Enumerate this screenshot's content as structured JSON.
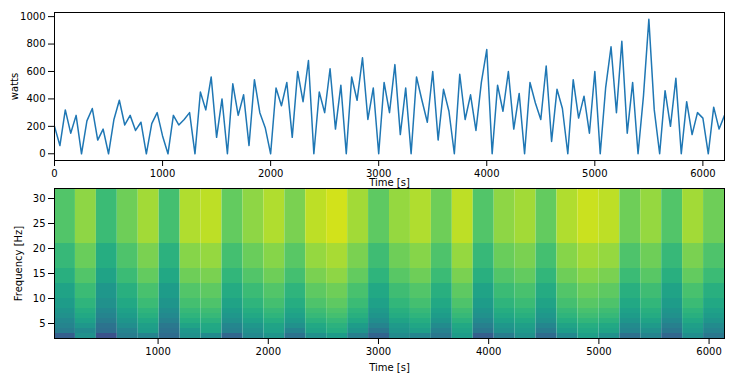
{
  "chart_data": [
    {
      "type": "line",
      "xlabel": "Time [s]",
      "ylabel": "watts",
      "color": "#1f77b4",
      "xlim": [
        0,
        6200
      ],
      "ylim": [
        -49,
        1030
      ],
      "xticks": [
        0,
        1000,
        2000,
        3000,
        4000,
        5000,
        6000
      ],
      "yticks": [
        0,
        200,
        400,
        600,
        800,
        1000
      ],
      "x": [
        0,
        50,
        100,
        150,
        200,
        250,
        300,
        350,
        400,
        450,
        500,
        550,
        600,
        650,
        700,
        750,
        800,
        850,
        900,
        950,
        1000,
        1050,
        1100,
        1150,
        1200,
        1250,
        1300,
        1350,
        1400,
        1450,
        1500,
        1550,
        1600,
        1650,
        1700,
        1750,
        1800,
        1850,
        1900,
        1950,
        2000,
        2050,
        2100,
        2150,
        2200,
        2250,
        2300,
        2350,
        2400,
        2450,
        2500,
        2550,
        2600,
        2650,
        2700,
        2750,
        2800,
        2850,
        2900,
        2950,
        3000,
        3050,
        3100,
        3150,
        3200,
        3250,
        3300,
        3350,
        3400,
        3450,
        3500,
        3550,
        3600,
        3650,
        3700,
        3750,
        3800,
        3850,
        3900,
        3950,
        4000,
        4050,
        4100,
        4150,
        4200,
        4250,
        4300,
        4350,
        4400,
        4450,
        4500,
        4550,
        4600,
        4650,
        4700,
        4750,
        4800,
        4850,
        4900,
        4950,
        5000,
        5050,
        5100,
        5150,
        5200,
        5250,
        5300,
        5350,
        5400,
        5450,
        5500,
        5550,
        5600,
        5650,
        5700,
        5750,
        5800,
        5850,
        5900,
        5950,
        6000,
        6050,
        6100,
        6150,
        6200
      ],
      "values": [
        200,
        60,
        320,
        150,
        280,
        0,
        240,
        330,
        100,
        180,
        0,
        250,
        390,
        210,
        280,
        170,
        230,
        0,
        220,
        300,
        130,
        0,
        280,
        210,
        250,
        300,
        0,
        450,
        320,
        560,
        120,
        400,
        0,
        510,
        280,
        430,
        60,
        540,
        300,
        190,
        0,
        480,
        350,
        520,
        120,
        600,
        380,
        680,
        0,
        450,
        300,
        620,
        180,
        500,
        0,
        560,
        390,
        700,
        250,
        480,
        0,
        520,
        300,
        650,
        140,
        480,
        0,
        560,
        390,
        230,
        600,
        100,
        470,
        310,
        0,
        580,
        250,
        430,
        170,
        520,
        760,
        0,
        500,
        310,
        600,
        180,
        440,
        0,
        520,
        370,
        250,
        640,
        90,
        470,
        330,
        0,
        540,
        260,
        420,
        150,
        600,
        0,
        480,
        780,
        300,
        820,
        150,
        520,
        0,
        420,
        980,
        320,
        0,
        460,
        200,
        550,
        0,
        380,
        140,
        300,
        260,
        0,
        340,
        180,
        280
      ]
    },
    {
      "type": "heatmap",
      "xlabel": "Time [s]",
      "ylabel": "Frequency [Hz]",
      "color": "viridis",
      "xlim": [
        60,
        6140
      ],
      "ylim": [
        2,
        32
      ],
      "xticks": [
        1000,
        2000,
        3000,
        4000,
        5000,
        6000
      ],
      "yticks": [
        5,
        10,
        15,
        20,
        25,
        30
      ],
      "zlim": [
        0,
        1
      ],
      "time_edges": [
        60,
        250,
        440,
        630,
        820,
        1010,
        1200,
        1390,
        1580,
        1770,
        1960,
        2150,
        2340,
        2530,
        2720,
        2910,
        3100,
        3290,
        3480,
        3670,
        3860,
        4050,
        4240,
        4430,
        4620,
        4810,
        5000,
        5190,
        5380,
        5570,
        5760,
        5950,
        6140
      ],
      "freq_edges": [
        2,
        3,
        4,
        5,
        6,
        7,
        8,
        10,
        13,
        16,
        21,
        32
      ],
      "cells": [
        [
          0.3,
          0.5,
          0.25,
          0.42,
          0.45,
          0.35,
          0.5,
          0.48,
          0.33,
          0.47,
          0.52,
          0.38,
          0.5,
          0.55,
          0.43,
          0.32,
          0.48,
          0.46,
          0.4,
          0.55,
          0.3,
          0.42,
          0.5,
          0.35,
          0.47,
          0.56,
          0.5,
          0.37,
          0.45,
          0.33,
          0.49,
          0.4
        ],
        [
          0.42,
          0.48,
          0.36,
          0.45,
          0.55,
          0.38,
          0.53,
          0.59,
          0.44,
          0.5,
          0.57,
          0.45,
          0.58,
          0.62,
          0.52,
          0.4,
          0.52,
          0.56,
          0.44,
          0.58,
          0.4,
          0.5,
          0.54,
          0.42,
          0.55,
          0.6,
          0.58,
          0.46,
          0.5,
          0.4,
          0.54,
          0.45
        ],
        [
          0.45,
          0.53,
          0.38,
          0.49,
          0.56,
          0.4,
          0.58,
          0.6,
          0.46,
          0.53,
          0.58,
          0.5,
          0.6,
          0.64,
          0.55,
          0.45,
          0.54,
          0.59,
          0.48,
          0.6,
          0.43,
          0.53,
          0.56,
          0.46,
          0.58,
          0.62,
          0.6,
          0.48,
          0.54,
          0.43,
          0.56,
          0.48
        ],
        [
          0.47,
          0.57,
          0.42,
          0.52,
          0.6,
          0.44,
          0.62,
          0.64,
          0.5,
          0.57,
          0.62,
          0.54,
          0.64,
          0.67,
          0.6,
          0.49,
          0.58,
          0.62,
          0.52,
          0.64,
          0.47,
          0.57,
          0.6,
          0.5,
          0.62,
          0.66,
          0.64,
          0.52,
          0.58,
          0.47,
          0.6,
          0.52
        ],
        [
          0.5,
          0.6,
          0.45,
          0.55,
          0.63,
          0.47,
          0.65,
          0.67,
          0.53,
          0.6,
          0.65,
          0.57,
          0.67,
          0.7,
          0.63,
          0.52,
          0.61,
          0.65,
          0.55,
          0.67,
          0.5,
          0.6,
          0.63,
          0.53,
          0.65,
          0.69,
          0.67,
          0.55,
          0.61,
          0.5,
          0.63,
          0.55
        ],
        [
          0.52,
          0.62,
          0.47,
          0.57,
          0.65,
          0.49,
          0.67,
          0.69,
          0.55,
          0.62,
          0.67,
          0.59,
          0.69,
          0.72,
          0.65,
          0.54,
          0.63,
          0.67,
          0.57,
          0.69,
          0.52,
          0.62,
          0.65,
          0.55,
          0.67,
          0.71,
          0.69,
          0.57,
          0.63,
          0.52,
          0.65,
          0.57
        ],
        [
          0.55,
          0.65,
          0.5,
          0.6,
          0.68,
          0.52,
          0.7,
          0.72,
          0.58,
          0.65,
          0.7,
          0.62,
          0.72,
          0.75,
          0.68,
          0.57,
          0.66,
          0.7,
          0.6,
          0.72,
          0.55,
          0.65,
          0.68,
          0.58,
          0.7,
          0.74,
          0.72,
          0.6,
          0.66,
          0.55,
          0.68,
          0.6
        ],
        [
          0.58,
          0.68,
          0.53,
          0.63,
          0.71,
          0.55,
          0.73,
          0.75,
          0.61,
          0.68,
          0.73,
          0.65,
          0.75,
          0.78,
          0.71,
          0.6,
          0.69,
          0.73,
          0.63,
          0.75,
          0.58,
          0.68,
          0.71,
          0.61,
          0.73,
          0.77,
          0.75,
          0.63,
          0.69,
          0.58,
          0.71,
          0.63
        ],
        [
          0.63,
          0.73,
          0.58,
          0.68,
          0.76,
          0.6,
          0.78,
          0.8,
          0.66,
          0.73,
          0.78,
          0.7,
          0.8,
          0.83,
          0.76,
          0.65,
          0.74,
          0.78,
          0.68,
          0.8,
          0.63,
          0.73,
          0.76,
          0.66,
          0.78,
          0.82,
          0.8,
          0.68,
          0.74,
          0.63,
          0.76,
          0.68
        ],
        [
          0.67,
          0.77,
          0.62,
          0.72,
          0.8,
          0.64,
          0.82,
          0.84,
          0.7,
          0.77,
          0.82,
          0.74,
          0.84,
          0.87,
          0.8,
          0.69,
          0.78,
          0.82,
          0.72,
          0.84,
          0.67,
          0.77,
          0.8,
          0.7,
          0.82,
          0.86,
          0.84,
          0.72,
          0.78,
          0.67,
          0.8,
          0.72
        ],
        [
          0.73,
          0.83,
          0.68,
          0.78,
          0.86,
          0.7,
          0.88,
          0.9,
          0.76,
          0.83,
          0.88,
          0.8,
          0.9,
          0.93,
          0.86,
          0.75,
          0.84,
          0.88,
          0.78,
          0.9,
          0.73,
          0.83,
          0.86,
          0.76,
          0.88,
          0.92,
          0.9,
          0.78,
          0.84,
          0.73,
          0.86,
          0.78
        ]
      ]
    }
  ]
}
